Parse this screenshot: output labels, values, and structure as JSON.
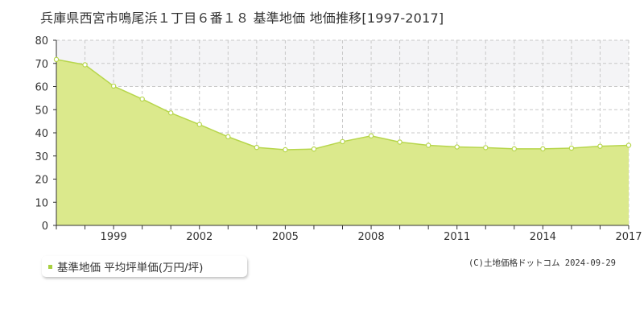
{
  "header": {
    "title": "兵庫県西宮市鳴尾浜１丁目６番１８ 基準地価 地価推移[1997-2017]"
  },
  "legend": {
    "label": "基準地価 平均坪単価(万円/坪)"
  },
  "footer": {
    "credit": "(C)土地価格ドットコム 2024-09-29"
  },
  "colors": {
    "area_fill": "#dbe98c",
    "line": "#b7d64c",
    "point_fill": "#ffffff",
    "upper_band": "#f4f4f6",
    "grid": "#c8c8c8",
    "axis": "#333333",
    "legend_marker": "#a8d040"
  },
  "chart_data": {
    "type": "area",
    "x": [
      1997,
      1998,
      1999,
      2000,
      2001,
      2002,
      2003,
      2004,
      2005,
      2006,
      2007,
      2008,
      2009,
      2010,
      2011,
      2012,
      2013,
      2014,
      2015,
      2016,
      2017
    ],
    "series": [
      {
        "name": "基準地価 平均坪単価(万円/坪)",
        "values": [
          71.7,
          69.4,
          60.2,
          54.6,
          48.6,
          43.6,
          38.3,
          33.7,
          32.7,
          33.0,
          36.2,
          38.7,
          36.0,
          34.6,
          33.9,
          33.6,
          33.1,
          33.1,
          33.4,
          34.2,
          34.6
        ]
      }
    ],
    "xticks": [
      "1999",
      "2002",
      "2005",
      "2008",
      "2011",
      "2014",
      "2017"
    ],
    "yticks": [
      "0",
      "10",
      "20",
      "30",
      "40",
      "50",
      "60",
      "70",
      "80"
    ],
    "ylim": [
      0,
      80
    ],
    "xlim": [
      1997,
      2017
    ],
    "grid": true
  }
}
